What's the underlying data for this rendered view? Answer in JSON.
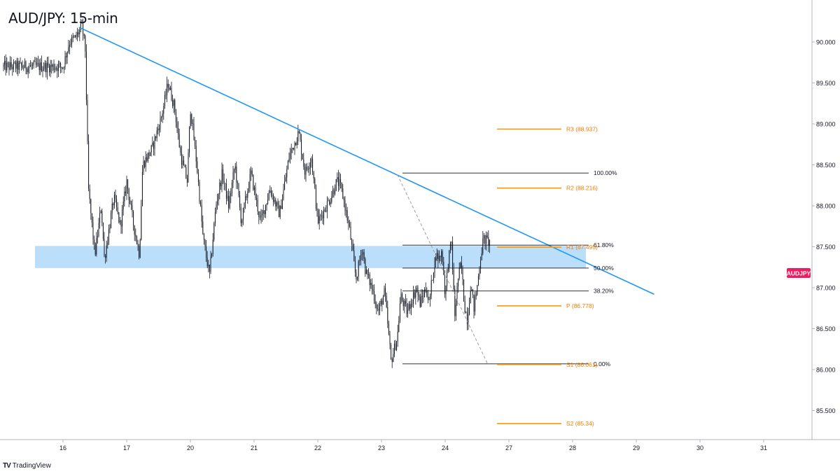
{
  "chart_data": {
    "type": "line",
    "title": "AUD/JPY: 15-min",
    "symbol_badge": "AUDJPY",
    "x_ticks": [
      "16",
      "17",
      "20",
      "21",
      "22",
      "23",
      "24",
      "27",
      "28",
      "29",
      "30",
      "31"
    ],
    "y_ticks": [
      "90.000",
      "89.500",
      "89.000",
      "88.500",
      "88.000",
      "87.500",
      "87.000",
      "86.500",
      "86.000",
      "85.500"
    ],
    "ylim": [
      85.3,
      90.45
    ],
    "grid": false,
    "price_path": {
      "name": "AUDJPY",
      "x": [
        0.0,
        0.1,
        0.2,
        0.3,
        0.35,
        0.4,
        0.5,
        0.6,
        0.65,
        0.8,
        0.9,
        1.0,
        1.1,
        1.2,
        1.25,
        1.4,
        1.55,
        1.65,
        1.75,
        1.85,
        1.95,
        2.0,
        2.1,
        2.2,
        2.3,
        2.4,
        2.5,
        2.6,
        2.7,
        2.8,
        2.95,
        3.1,
        3.25,
        3.4,
        3.55,
        3.7,
        3.8,
        3.9,
        4.0,
        4.1,
        4.2,
        4.3,
        4.35,
        4.4,
        4.5,
        4.6,
        4.7,
        4.75,
        4.85,
        4.95,
        5.05,
        5.15,
        5.25,
        5.3,
        5.4,
        5.5,
        5.55,
        5.6,
        5.65,
        5.7,
        5.75,
        5.8,
        5.85,
        5.9,
        5.95,
        6.0,
        6.05,
        6.1,
        6.15,
        6.2,
        6.25,
        6.3,
        6.35,
        6.4,
        6.45,
        6.5,
        6.55,
        6.6,
        6.7
      ],
      "y": [
        89.7,
        90.0,
        90.05,
        90.2,
        89.9,
        88.2,
        87.4,
        88.0,
        87.35,
        88.1,
        87.75,
        88.3,
        87.8,
        87.4,
        88.5,
        88.7,
        89.1,
        89.5,
        89.2,
        88.6,
        88.3,
        89.2,
        88.5,
        87.6,
        87.15,
        88.0,
        88.4,
        88.0,
        88.5,
        87.8,
        88.4,
        87.8,
        88.2,
        87.9,
        88.6,
        88.9,
        88.4,
        88.6,
        87.8,
        87.95,
        88.1,
        88.3,
        88.25,
        88.1,
        87.7,
        87.1,
        87.5,
        87.2,
        87.0,
        86.7,
        86.95,
        86.1,
        86.4,
        86.9,
        86.7,
        86.9,
        87.0,
        86.8,
        86.9,
        87.0,
        86.8,
        87.15,
        87.4,
        87.35,
        87.45,
        86.9,
        87.35,
        87.55,
        86.65,
        87.1,
        87.3,
        86.8,
        86.6,
        87.05,
        86.75,
        87.0,
        87.35,
        87.6,
        87.55
      ]
    },
    "support_zone": {
      "y_top": 87.51,
      "y_bottom": 87.24
    },
    "trendline": {
      "from": {
        "x": 0.25,
        "y": 90.18
      },
      "to": {
        "x": 9.28,
        "y": 86.92
      }
    },
    "fib_projection": {
      "from": {
        "x": 5.25,
        "y": 88.38
      },
      "to": {
        "x": 6.66,
        "y": 86.08
      }
    },
    "fibonacci": [
      {
        "label": "100.00%",
        "price": 88.4
      },
      {
        "label": "61.80%",
        "price": 87.52
      },
      {
        "label": "50.00%",
        "price": 87.24
      },
      {
        "label": "38.20%",
        "price": 86.96
      },
      {
        "label": "0.00%",
        "price": 86.07
      }
    ],
    "pivots": [
      {
        "label": "R3 (88.937)",
        "price": 88.937
      },
      {
        "label": "R2 (88.216)",
        "price": 88.216
      },
      {
        "label": "R1 (87.495)",
        "price": 87.495
      },
      {
        "label": "P (86.778)",
        "price": 86.778
      },
      {
        "label": "S1 (86.061)",
        "price": 86.061
      },
      {
        "label": "S2 (85.34)",
        "price": 85.34
      }
    ],
    "colors": {
      "candles": "#131722",
      "trendline": "#2196f3",
      "support_zone": "#bbdefb",
      "fib": "#131722",
      "pivot": "#ff9800",
      "pivot_label": "#f57c00",
      "badge": "#e91e63",
      "axis_text": "#131722"
    }
  },
  "footer": {
    "brand": "TradingView"
  }
}
